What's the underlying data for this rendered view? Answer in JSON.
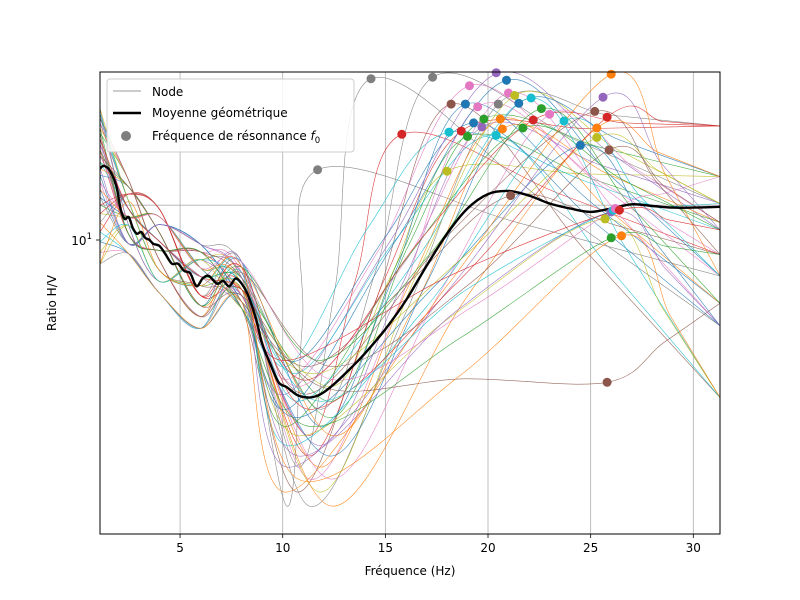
{
  "chart_data": {
    "type": "line",
    "title": "",
    "xlabel": "Fréquence (Hz)",
    "ylabel": "Ratio H/V",
    "xlim": [
      1.1,
      31.3
    ],
    "ylim": [
      1.35,
      22.5
    ],
    "yscale": "log",
    "grid": true,
    "x_ticks": [
      5,
      10,
      15,
      20,
      25,
      30
    ],
    "x_tick_labels": [
      "5",
      "10",
      "15",
      "20",
      "25",
      "30"
    ],
    "y_ticks": [
      10
    ],
    "y_tick_label": {
      "base": "10",
      "exp": "1"
    },
    "legend": {
      "placement": "top-left",
      "entries": [
        {
          "label": "Node",
          "kind": "line",
          "color": "#9a9a9a"
        },
        {
          "label": "Moyenne géométrique",
          "kind": "line",
          "color": "#000000"
        },
        {
          "label": "Fréquence de résonnance ",
          "label_math": "f",
          "label_sub": "0",
          "kind": "point",
          "color": "#7f7f7f"
        }
      ]
    },
    "series": [
      {
        "name": "Moyenne géométrique",
        "color": "#000000",
        "x": [
          1.1,
          1.3,
          1.6,
          1.9,
          2.1,
          2.3,
          2.5,
          2.7,
          2.9,
          3.1,
          3.3,
          3.5,
          3.7,
          4.0,
          4.3,
          4.6,
          4.9,
          5.2,
          5.5,
          5.8,
          6.1,
          6.4,
          6.8,
          7.1,
          7.4,
          7.7,
          8.0,
          8.3,
          8.7,
          9.0,
          9.4,
          9.8,
          10.2,
          10.7,
          11.2,
          11.6,
          12.0,
          12.6,
          13.3,
          14.0,
          15.0,
          16.0,
          17.0,
          18.0,
          19.0,
          20.0,
          21.0,
          22.0,
          23.0,
          24.0,
          25.0,
          26.0,
          27.0,
          28.0,
          29.0,
          30.0,
          31.3
        ],
        "y": [
          12.5,
          12.7,
          12.3,
          11.2,
          9.8,
          9.2,
          9.3,
          8.7,
          8.4,
          8.5,
          8.2,
          8.1,
          7.9,
          7.8,
          7.4,
          7.0,
          7.0,
          6.7,
          6.6,
          6.1,
          6.4,
          6.5,
          6.2,
          6.3,
          6.1,
          6.4,
          6.2,
          5.8,
          5.0,
          4.3,
          3.8,
          3.4,
          3.3,
          3.15,
          3.1,
          3.12,
          3.2,
          3.4,
          3.7,
          4.05,
          4.7,
          5.6,
          6.9,
          8.4,
          9.8,
          10.7,
          10.9,
          10.6,
          10.1,
          9.8,
          9.6,
          9.8,
          10.05,
          9.95,
          9.85,
          9.85,
          9.9
        ]
      }
    ],
    "node_colors": [
      "#1f77b4",
      "#ff7f0e",
      "#2ca02c",
      "#d62728",
      "#9467bd",
      "#8c564b",
      "#e377c2",
      "#7f7f7f",
      "#bcbd22",
      "#17becf"
    ],
    "node_points": [
      {
        "x": 11.7,
        "y": 12.4,
        "color": "#7f7f7f"
      },
      {
        "x": 14.3,
        "y": 21.6,
        "color": "#7f7f7f"
      },
      {
        "x": 15.8,
        "y": 15.4,
        "color": "#d62728"
      },
      {
        "x": 17.3,
        "y": 21.8,
        "color": "#7f7f7f"
      },
      {
        "x": 18.0,
        "y": 12.3,
        "color": "#bcbd22"
      },
      {
        "x": 18.1,
        "y": 15.6,
        "color": "#17becf"
      },
      {
        "x": 18.2,
        "y": 18.5,
        "color": "#8c564b"
      },
      {
        "x": 18.7,
        "y": 15.7,
        "color": "#d62728"
      },
      {
        "x": 18.9,
        "y": 18.5,
        "color": "#1f77b4"
      },
      {
        "x": 19.0,
        "y": 15.2,
        "color": "#2ca02c"
      },
      {
        "x": 19.1,
        "y": 20.7,
        "color": "#e377c2"
      },
      {
        "x": 19.3,
        "y": 16.5,
        "color": "#1f77b4"
      },
      {
        "x": 19.5,
        "y": 18.2,
        "color": "#e377c2"
      },
      {
        "x": 19.7,
        "y": 16.1,
        "color": "#9467bd"
      },
      {
        "x": 19.8,
        "y": 16.9,
        "color": "#2ca02c"
      },
      {
        "x": 20.4,
        "y": 22.4,
        "color": "#9467bd"
      },
      {
        "x": 20.4,
        "y": 15.3,
        "color": "#17becf"
      },
      {
        "x": 20.5,
        "y": 18.5,
        "color": "#7f7f7f"
      },
      {
        "x": 20.6,
        "y": 16.9,
        "color": "#ff7f0e"
      },
      {
        "x": 20.7,
        "y": 15.9,
        "color": "#ff7f0e"
      },
      {
        "x": 20.9,
        "y": 21.4,
        "color": "#1f77b4"
      },
      {
        "x": 21.0,
        "y": 19.8,
        "color": "#e377c2"
      },
      {
        "x": 21.1,
        "y": 10.6,
        "color": "#8c564b"
      },
      {
        "x": 21.3,
        "y": 19.5,
        "color": "#bcbd22"
      },
      {
        "x": 21.5,
        "y": 18.6,
        "color": "#1f77b4"
      },
      {
        "x": 21.7,
        "y": 16.0,
        "color": "#2ca02c"
      },
      {
        "x": 22.1,
        "y": 19.2,
        "color": "#17becf"
      },
      {
        "x": 22.2,
        "y": 16.8,
        "color": "#d62728"
      },
      {
        "x": 22.6,
        "y": 18.0,
        "color": "#2ca02c"
      },
      {
        "x": 23.0,
        "y": 17.4,
        "color": "#e377c2"
      },
      {
        "x": 23.7,
        "y": 16.7,
        "color": "#17becf"
      },
      {
        "x": 24.5,
        "y": 14.4,
        "color": "#1f77b4"
      },
      {
        "x": 25.2,
        "y": 17.7,
        "color": "#8c564b"
      },
      {
        "x": 25.3,
        "y": 15.1,
        "color": "#bcbd22"
      },
      {
        "x": 25.3,
        "y": 16.0,
        "color": "#ff7f0e"
      },
      {
        "x": 25.6,
        "y": 19.3,
        "color": "#9467bd"
      },
      {
        "x": 25.7,
        "y": 9.2,
        "color": "#bcbd22"
      },
      {
        "x": 25.8,
        "y": 17.1,
        "color": "#d62728"
      },
      {
        "x": 25.8,
        "y": 3.4,
        "color": "#8c564b"
      },
      {
        "x": 25.9,
        "y": 14.0,
        "color": "#8c564b"
      },
      {
        "x": 26.0,
        "y": 22.2,
        "color": "#ff7f0e"
      },
      {
        "x": 26.0,
        "y": 9.6,
        "color": "#9467bd"
      },
      {
        "x": 26.0,
        "y": 8.2,
        "color": "#2ca02c"
      },
      {
        "x": 26.1,
        "y": 9.7,
        "color": "#17becf"
      },
      {
        "x": 26.2,
        "y": 9.8,
        "color": "#e377c2"
      },
      {
        "x": 26.4,
        "y": 9.7,
        "color": "#d62728"
      },
      {
        "x": 26.5,
        "y": 8.3,
        "color": "#ff7f0e"
      }
    ],
    "node_tail_y": [
      6.5,
      4.8,
      7.4,
      10.1,
      11.9,
      8.6,
      3.1,
      16.2,
      5.5,
      9.0
    ]
  }
}
